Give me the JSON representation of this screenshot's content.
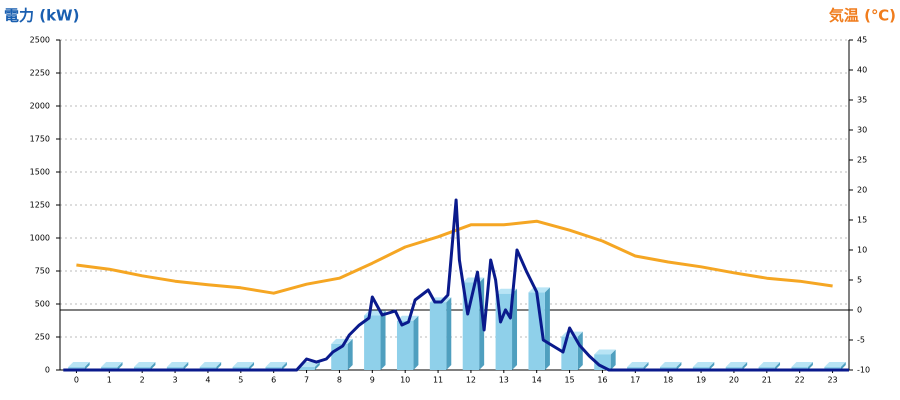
{
  "chart_data": {
    "type": "bar",
    "title": "電力 (kW)",
    "y2_title": "気温 (℃)",
    "categories": [
      "0",
      "1",
      "2",
      "3",
      "4",
      "5",
      "6",
      "7",
      "8",
      "9",
      "10",
      "11",
      "12",
      "13",
      "14",
      "15",
      "16",
      "17",
      "18",
      "19",
      "20",
      "21",
      "22",
      "23"
    ],
    "ylim": [
      0,
      2500
    ],
    "yticks": [
      0,
      250,
      500,
      750,
      1000,
      1250,
      1500,
      1750,
      2000,
      2250,
      2500
    ],
    "y2lim": [
      -10,
      45
    ],
    "y2ticks": [
      -10,
      -5,
      0,
      5,
      10,
      15,
      20,
      25,
      30,
      35,
      40,
      45
    ],
    "grid": true,
    "series": [
      {
        "type": "bar",
        "color": "#8fd0ea",
        "values": [
          0,
          0,
          0,
          0,
          0,
          0,
          0,
          0,
          175,
          390,
          350,
          490,
          640,
          555,
          565,
          230,
          95,
          0,
          0,
          0,
          0,
          0,
          0,
          0
        ]
      },
      {
        "type": "line",
        "color": "#f5a623",
        "axis": "y2",
        "values": [
          7.5,
          6.8,
          5.7,
          4.8,
          4.2,
          3.7,
          2.8,
          4.3,
          5.3,
          7.8,
          10.5,
          12.2,
          14.2,
          14.2,
          14.8,
          13.3,
          11.5,
          9,
          8,
          7.2,
          6.2,
          5.3,
          4.8,
          4
        ]
      },
      {
        "type": "line",
        "color": "#0a1a8c",
        "x": [
          -0.4,
          6.7,
          7.0,
          7.3,
          7.6,
          7.8,
          8.1,
          8.3,
          8.6,
          8.9,
          9.0,
          9.3,
          9.7,
          9.9,
          10.1,
          10.3,
          10.7,
          10.9,
          11.1,
          11.3,
          11.55,
          11.65,
          11.9,
          12.2,
          12.4,
          12.6,
          12.75,
          12.9,
          13.05,
          13.2,
          13.4,
          13.7,
          14.0,
          14.2,
          14.5,
          14.8,
          15.0,
          15.3,
          15.6,
          15.9,
          16.2,
          23.5
        ],
        "values": [
          0,
          0,
          83,
          60,
          83,
          136,
          182,
          265,
          340,
          394,
          553,
          417,
          447,
          341,
          364,
          530,
          606,
          515,
          515,
          568,
          1288,
          833,
          424,
          742,
          303,
          833,
          682,
          364,
          455,
          394,
          909,
          742,
          591,
          227,
          182,
          136,
          318,
          189,
          106,
          38,
          0,
          0
        ]
      }
    ]
  }
}
